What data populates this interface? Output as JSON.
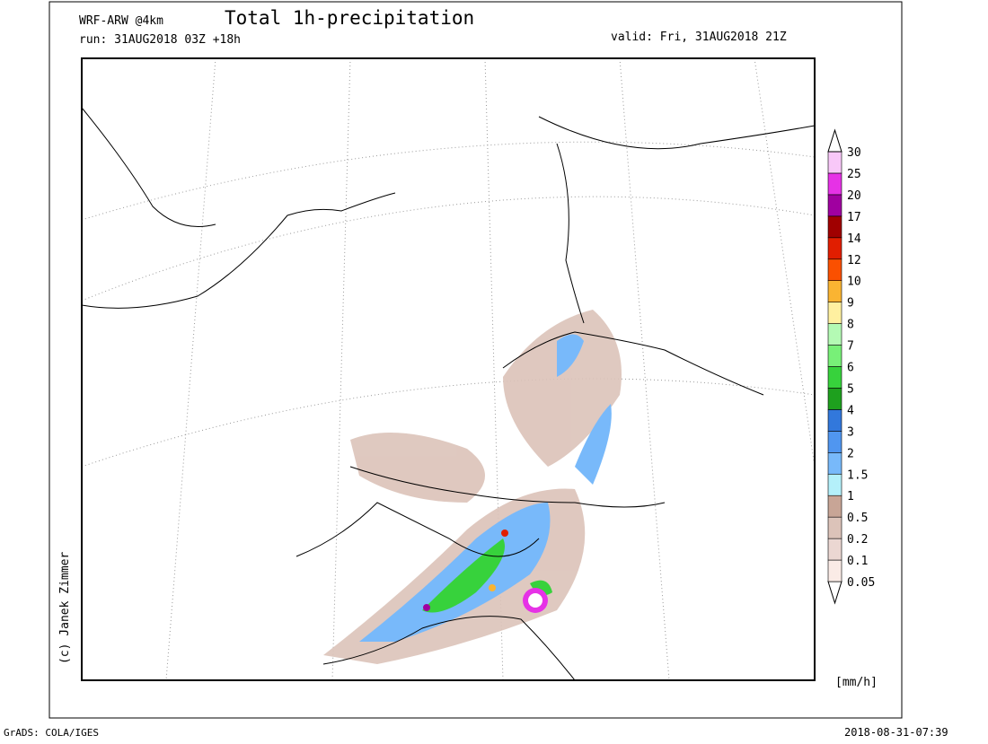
{
  "header": {
    "model": "WRF-ARW @4km",
    "run": "run: 31AUG2018 03Z +18h",
    "title": "Total 1h-precipitation",
    "valid": "valid: Fri, 31AUG2018 21Z"
  },
  "copyright": "(c) Janek Zimmer",
  "legend": {
    "unit": "[mm/h]",
    "labels": [
      "0.05",
      "0.1",
      "0.2",
      "0.5",
      "1",
      "1.5",
      "2",
      "3",
      "4",
      "5",
      "6",
      "7",
      "8",
      "9",
      "10",
      "12",
      "14",
      "17",
      "20",
      "25",
      "30"
    ],
    "colors": [
      "#ffffff",
      "#faebe6",
      "#ebd7d2",
      "#dcc3b9",
      "#c8a596",
      "#b4f0fa",
      "#78b9fa",
      "#5096f0",
      "#3278dc",
      "#1ea01e",
      "#37d23c",
      "#78f078",
      "#b4fab4",
      "#fff0a0",
      "#fab432",
      "#fa5000",
      "#e11e00",
      "#a00000",
      "#a000a0",
      "#e632e6",
      "#f8c8f8",
      "#ffffff"
    ]
  },
  "footer": {
    "left": "GrADS: COLA/IGES",
    "right": "2018-08-31-07:39"
  }
}
